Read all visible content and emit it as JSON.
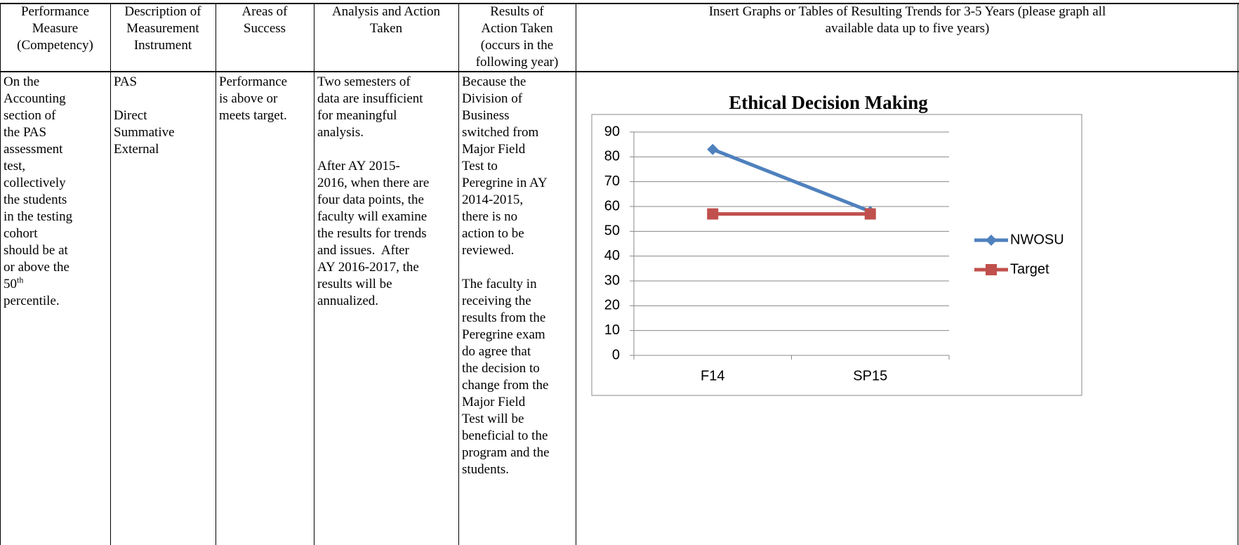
{
  "table": {
    "header": [
      [
        "Performance",
        "Measure",
        "(Competency)"
      ],
      [
        "Description of",
        "Measurement",
        "Instrument"
      ],
      [
        "Areas of",
        "Success"
      ],
      [
        "Analysis and Action",
        "Taken"
      ],
      [
        "Results of",
        "Action Taken",
        "(occurs in the",
        "following year)"
      ],
      [
        "Insert Graphs or Tables of Resulting Trends for 3-5 Years (please graph all",
        "available data up to five years)"
      ]
    ],
    "row": [
      [
        [
          "On the",
          "Accounting",
          "section of",
          "the PAS",
          "assessment",
          "test,",
          "collectively",
          "the students",
          "in the testing",
          "cohort",
          "should be at",
          "or above the",
          {
            "text": "50",
            "sup": "th"
          },
          "percentile."
        ]
      ],
      [
        [
          "PAS"
        ],
        [
          "Direct",
          "Summative",
          "External"
        ]
      ],
      [
        [
          "Performance",
          "is above or",
          "meets target."
        ]
      ],
      [
        [
          "Two semesters of",
          "data are insufficient",
          "for meaningful",
          "analysis."
        ],
        [
          "After AY 2015-",
          "2016, when there are",
          "four data points, the",
          "faculty will examine",
          "the results for trends",
          "and issues.  After",
          "AY 2016-2017, the",
          "results will be",
          "annualized."
        ]
      ],
      [
        [
          "Because the",
          "Division of",
          "Business",
          "switched from",
          "Major Field",
          "Test to",
          "Peregrine in AY",
          "2014-2015,",
          "there is no",
          "action to be",
          "reviewed."
        ],
        [
          "The faculty in",
          "receiving the",
          "results from the",
          "Peregrine exam",
          "do agree that",
          "the decision to",
          "change from the",
          "Major Field",
          "Test will be",
          "beneficial to the",
          "program and the",
          "students."
        ]
      ]
    ]
  },
  "chart_data": {
    "type": "line",
    "title": "Ethical Decision Making",
    "categories": [
      "F14",
      "SP15"
    ],
    "series": [
      {
        "name": "NWOSU",
        "color": "#4f81bd",
        "marker": "diamond",
        "values": [
          83,
          58
        ]
      },
      {
        "name": "Target",
        "color": "#c0504d",
        "marker": "square",
        "values": [
          57,
          57
        ]
      }
    ],
    "ylim": [
      0,
      90
    ],
    "yticks": [
      0,
      10,
      20,
      30,
      40,
      50,
      60,
      70,
      80,
      90
    ],
    "grid": true,
    "legend": "right"
  }
}
